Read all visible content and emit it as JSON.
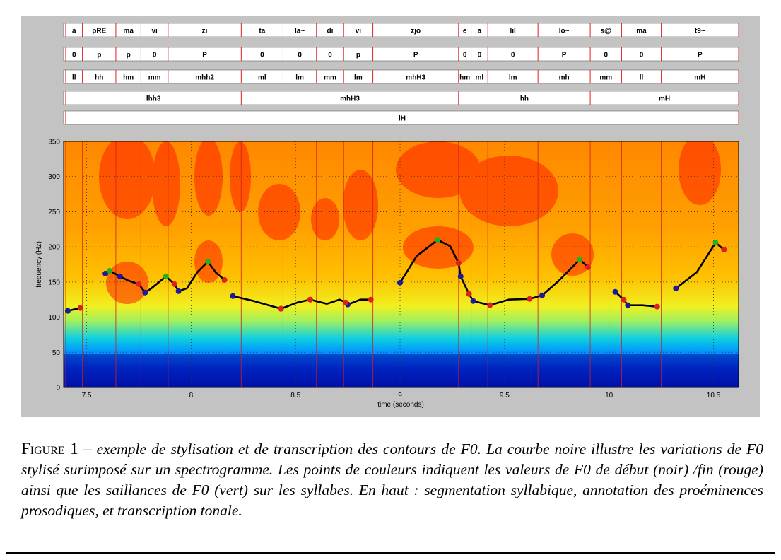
{
  "chart_data": {
    "type": "spectrogram",
    "xlabel": "time (seconds)",
    "ylabel": "frequency (Hz)",
    "xlim": [
      7.39,
      10.62
    ],
    "ylim": [
      0,
      350
    ],
    "xticks": [
      7.5,
      8,
      8.5,
      9,
      9.5,
      10,
      10.5
    ],
    "yticks": [
      0,
      50,
      100,
      150,
      200,
      250,
      300,
      350
    ],
    "tiers": [
      {
        "labels": [
          "a",
          "pRE",
          "ma",
          "vi",
          "zi",
          "ta",
          "la~",
          "di",
          "vi",
          "zjo",
          "e",
          "a",
          "lil",
          "lo~",
          "s@",
          "ma",
          "t9~"
        ],
        "bounds": [
          7.4,
          7.48,
          7.64,
          7.76,
          7.89,
          8.24,
          8.44,
          8.6,
          8.73,
          8.87,
          9.28,
          9.34,
          9.42,
          9.66,
          9.91,
          10.06,
          10.25,
          10.62
        ]
      },
      {
        "labels": [
          "0",
          "p",
          "p",
          "0",
          "P",
          "0",
          "0",
          "0",
          "p",
          "P",
          "0",
          "0",
          "0",
          "P",
          "0",
          "0",
          "P"
        ],
        "bounds": [
          7.4,
          7.48,
          7.64,
          7.76,
          7.89,
          8.24,
          8.44,
          8.6,
          8.73,
          8.87,
          9.28,
          9.34,
          9.42,
          9.66,
          9.91,
          10.06,
          10.25,
          10.62
        ]
      },
      {
        "labels": [
          "ll",
          "hh",
          "hm",
          "mm",
          "mhh2",
          "ml",
          "lm",
          "mm",
          "lm",
          "mhH3",
          "hm",
          "ml",
          "lm",
          "mh",
          "mm",
          "ll",
          "mH"
        ],
        "bounds": [
          7.4,
          7.48,
          7.64,
          7.76,
          7.89,
          8.24,
          8.44,
          8.6,
          8.73,
          8.87,
          9.28,
          9.34,
          9.42,
          9.66,
          9.91,
          10.06,
          10.25,
          10.62
        ]
      },
      {
        "labels": [
          "lhh3",
          "mhH3",
          "hh",
          "mH"
        ],
        "bounds": [
          7.4,
          8.24,
          9.28,
          9.91,
          10.62
        ]
      },
      {
        "labels": [
          "lH"
        ],
        "bounds": [
          7.4,
          10.62
        ]
      }
    ],
    "curve": {
      "color": "#000000",
      "x": [
        7.41,
        7.47,
        null,
        7.59,
        7.61,
        7.66,
        7.7,
        7.75,
        7.78,
        7.81,
        7.88,
        7.92,
        7.94,
        7.98,
        8.03,
        8.08,
        8.12,
        8.16,
        null,
        8.2,
        8.3,
        8.43,
        8.51,
        8.57,
        8.65,
        8.71,
        8.74,
        8.75,
        8.81,
        8.86,
        null,
        9.0,
        9.08,
        9.18,
        9.24,
        9.28,
        9.29,
        9.33,
        9.35,
        9.43,
        9.52,
        9.62,
        9.68,
        9.76,
        9.86,
        9.9,
        null,
        10.03,
        10.07,
        10.09,
        10.16,
        10.23,
        null,
        10.32,
        10.42,
        10.51,
        10.55
      ],
      "y": [
        109,
        113,
        null,
        162,
        166,
        158,
        152,
        147,
        135,
        141,
        158,
        147,
        137,
        141,
        164,
        179,
        163,
        153,
        null,
        130,
        123,
        112,
        121,
        125,
        119,
        125,
        121,
        118,
        125,
        125,
        null,
        149,
        187,
        210,
        201,
        177,
        158,
        133,
        123,
        117,
        125,
        126,
        131,
        152,
        182,
        171,
        null,
        136,
        125,
        117,
        117,
        115,
        null,
        141,
        164,
        206,
        196
      ]
    },
    "onsets": {
      "color": "#1a1a9a",
      "x": [
        7.41,
        7.59,
        7.66,
        7.78,
        7.94,
        8.2,
        8.43,
        8.57,
        8.75,
        9.0,
        9.29,
        9.35,
        9.68,
        10.03,
        10.09,
        10.32
      ],
      "y": [
        109,
        162,
        158,
        135,
        137,
        130,
        112,
        125,
        118,
        149,
        158,
        123,
        131,
        136,
        117,
        141
      ]
    },
    "offsets": {
      "color": "#e02020",
      "x": [
        7.47,
        7.75,
        7.92,
        8.16,
        8.43,
        8.57,
        8.74,
        8.86,
        9.28,
        9.33,
        9.43,
        9.62,
        9.9,
        10.07,
        10.23,
        10.55
      ],
      "y": [
        113,
        147,
        147,
        153,
        112,
        125,
        121,
        125,
        177,
        133,
        117,
        126,
        171,
        125,
        115,
        196
      ]
    },
    "peaks": {
      "color": "#20b020",
      "x": [
        7.61,
        7.88,
        8.08,
        9.18,
        9.86,
        10.51
      ],
      "y": [
        166,
        158,
        179,
        210,
        182,
        206
      ]
    }
  },
  "caption": {
    "label": "Figure 1 –",
    "text": "exemple de stylisation et de transcription des contours de F0. La courbe noire illustre les variations de F0 stylisé surimposé sur un spectrogramme. Les points de couleurs indiquent les valeurs de F0 de début (noir) /fin (rouge) ainsi que les saillances de F0 (vert) sur les syllabes. En haut : segmentation syllabique, annotation des proéminences prosodiques, et transcription tonale."
  }
}
